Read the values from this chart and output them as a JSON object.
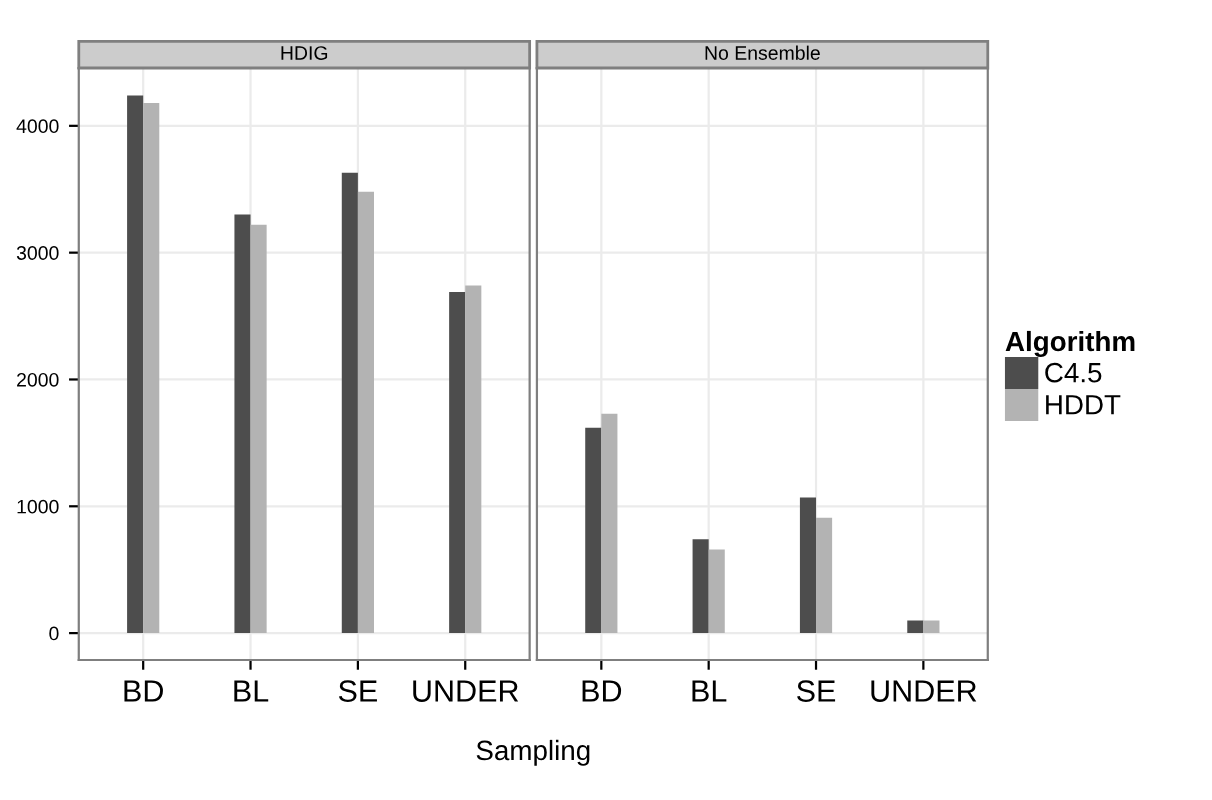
{
  "chart_data": [
    {
      "type": "bar",
      "title": "HDIG",
      "xlabel": "Sampling",
      "categories": [
        "BD",
        "BL",
        "SE",
        "UNDER"
      ],
      "series": [
        {
          "name": "C4.5",
          "color": "#4d4d4d",
          "values": [
            4240,
            3300,
            3630,
            2690
          ]
        },
        {
          "name": "HDDT",
          "color": "#b3b3b3",
          "values": [
            4180,
            3220,
            3480,
            2740
          ]
        }
      ],
      "ylim": [
        -212,
        4456
      ],
      "yticks": [
        0,
        1000,
        2000,
        3000,
        4000
      ],
      "grid": true,
      "legend": "right",
      "legend_title": "Algorithm"
    },
    {
      "type": "bar",
      "title": "No Ensemble",
      "categories": [
        "BD",
        "BL",
        "SE",
        "UNDER"
      ],
      "series": [
        {
          "color": "#4d4d4d",
          "values": [
            1620,
            740,
            1070,
            100
          ]
        },
        {
          "color": "#b3b3b3",
          "values": [
            1730,
            660,
            910,
            100
          ]
        }
      ],
      "ylim": [
        -212,
        4456
      ],
      "yticks": [
        0,
        1000,
        2000,
        3000,
        4000
      ],
      "grid": true,
      "tick_labels": "x"
    }
  ]
}
